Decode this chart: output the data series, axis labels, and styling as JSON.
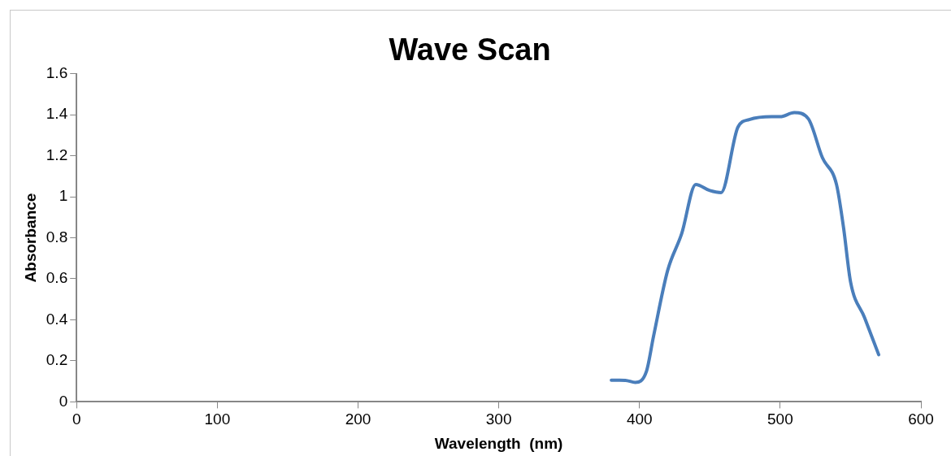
{
  "chart_data": {
    "type": "line",
    "title": "Wave Scan",
    "xlabel": "Wavelength  (nm)",
    "ylabel": "Absorbance",
    "series": [
      {
        "color": "#4a7ebb",
        "x": [
          380,
          390,
          397,
          405,
          410,
          420,
          430,
          440,
          450,
          458,
          470,
          478,
          494,
          500,
          510,
          520,
          530,
          540,
          545,
          550,
          560,
          570
        ],
        "values": [
          0.106,
          0.105,
          0.095,
          0.15,
          0.32,
          0.64,
          0.82,
          1.06,
          1.03,
          1.02,
          1.34,
          1.376,
          1.39,
          1.39,
          1.41,
          1.38,
          1.19,
          1.06,
          0.85,
          0.585,
          0.41,
          0.23
        ]
      }
    ],
    "xlim": [
      0,
      600
    ],
    "xticks": [
      0,
      100,
      200,
      300,
      400,
      500,
      600
    ],
    "ylim": [
      0,
      1.6
    ],
    "yticks": [
      0,
      0.2,
      0.4,
      0.6,
      0.8,
      1,
      1.2,
      1.4,
      1.6
    ],
    "grid": false,
    "legend": false,
    "marker": "none",
    "line_style": "solid"
  }
}
